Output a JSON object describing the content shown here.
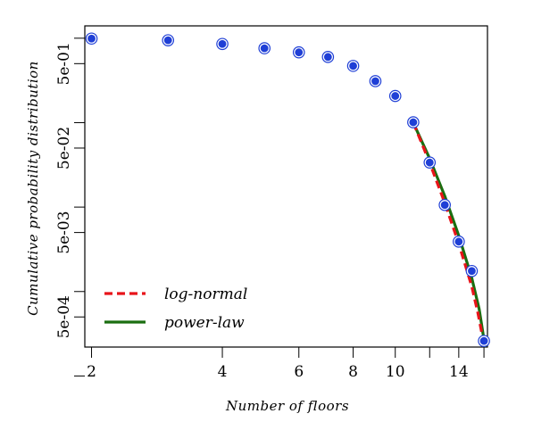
{
  "chart_data": {
    "type": "scatter",
    "xlabel": "Number of floors",
    "ylabel": "Cumulative probability distribution",
    "x_scale": "log",
    "y_scale": "log",
    "xlim": [
      1.93,
      16.3
    ],
    "ylim": [
      0.00022,
      1.4
    ],
    "x_ticks": [
      2,
      4,
      6,
      8,
      10,
      12,
      14,
      16
    ],
    "x_tick_labels": [
      "2",
      "4",
      "6",
      "8",
      "10",
      "",
      "14",
      ""
    ],
    "y_ticks": [
      0.0001,
      0.0005,
      0.001,
      0.005,
      0.01,
      0.05,
      0.1,
      0.5,
      1
    ],
    "y_tick_labels": [
      "",
      "5e-04",
      "",
      "5e-03",
      "",
      "5e-02",
      "",
      "5e-01",
      ""
    ],
    "grid": false,
    "legend_position": "bottom-left",
    "series": [
      {
        "type": "scatter",
        "x": [
          2,
          3,
          4,
          5,
          6,
          7,
          8,
          9,
          10,
          11,
          12,
          13,
          14,
          15,
          16
        ],
        "y": [
          0.99,
          0.945,
          0.855,
          0.76,
          0.68,
          0.6,
          0.47,
          0.31,
          0.207,
          0.101,
          0.0337,
          0.0106,
          0.0039,
          0.00175,
          0.00026
        ],
        "color": "#1f3fd6"
      },
      {
        "name": "log-normal",
        "type": "line",
        "style": "dashed",
        "color": "#e8141a",
        "x": [
          11,
          12,
          13,
          14,
          15,
          15.5,
          16.05
        ],
        "y": [
          0.1,
          0.0335,
          0.0112,
          0.0037,
          0.00115,
          0.00055,
          0.00022
        ]
      },
      {
        "name": "power-law",
        "type": "line",
        "style": "solid",
        "color": "#1a6e10",
        "x": [
          11,
          12,
          13,
          14,
          15,
          15.6,
          16.1
        ],
        "y": [
          0.1,
          0.0375,
          0.0135,
          0.0046,
          0.00145,
          0.00062,
          0.00022
        ]
      }
    ]
  }
}
